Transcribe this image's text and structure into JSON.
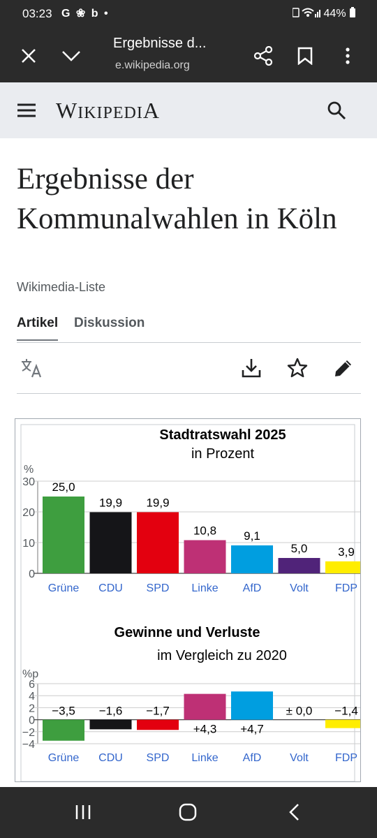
{
  "status": {
    "time": "03:23",
    "app_icons": "G ❀ b •",
    "battery": "44%"
  },
  "browser": {
    "title": "Ergebnisse d...",
    "url": "e.wikipedia.org"
  },
  "wiki": {
    "wordmark_W": "W",
    "wordmark_rest": "IKIPEDI",
    "wordmark_A": "A"
  },
  "page": {
    "title": "Ergebnisse der Kommunalwahlen in Köln",
    "subtitle": "Wikimedia-Liste"
  },
  "tabs": [
    "Artikel",
    "Diskussion"
  ],
  "icons": [
    "close-icon",
    "chevron-down-icon",
    "share-icon",
    "bookmark-icon",
    "more-icon",
    "menu-icon",
    "search-icon",
    "translate-icon",
    "download-icon",
    "star-icon",
    "edit-icon",
    "recents-icon",
    "home-icon",
    "back-icon"
  ],
  "colors": {
    "Grüne": "#3e9e3f",
    "CDU": "#151518",
    "SPD": "#e3000f",
    "Linke": "#be3075",
    "AfD": "#009ee0",
    "Volt": "#502379",
    "FDP": "#ffed00",
    "link": "#3366cc"
  },
  "chart_data": [
    {
      "type": "bar",
      "title": "Stadtratswahl 2025",
      "subtitle": "in Prozent",
      "ylabel": "%",
      "categories": [
        "Grüne",
        "CDU",
        "SPD",
        "Linke",
        "AfD",
        "Volt",
        "FDP"
      ],
      "values": [
        25.0,
        19.9,
        19.9,
        10.8,
        9.1,
        5.0,
        3.9
      ],
      "value_labels": [
        "25,0",
        "19,9",
        "19,9",
        "10,8",
        "9,1",
        "5,0",
        "3,9"
      ],
      "ylim": [
        0,
        30
      ],
      "yticks": [
        0,
        10,
        20,
        30
      ],
      "ytick_labels": [
        "0",
        "10",
        "20",
        "30"
      ],
      "grid": true
    },
    {
      "type": "bar",
      "title": "Gewinne und Verluste",
      "subtitle": "im Vergleich zu 2020",
      "ylabel": "%p",
      "categories": [
        "Grüne",
        "CDU",
        "SPD",
        "Linke",
        "AfD",
        "Volt",
        "FDP"
      ],
      "values": [
        -3.5,
        -1.6,
        -1.7,
        4.3,
        4.7,
        0.0,
        -1.4
      ],
      "value_labels": [
        "−3,5",
        "−1,6",
        "−1,7",
        "+4,3",
        "+4,7",
        "± 0,0",
        "−1,4"
      ],
      "ylim": [
        -4,
        6
      ],
      "yticks": [
        -4,
        -2,
        0,
        2,
        4,
        6
      ],
      "ytick_labels": [
        "−4",
        "−2",
        "0",
        "2",
        "4",
        "6"
      ],
      "grid": true
    }
  ]
}
